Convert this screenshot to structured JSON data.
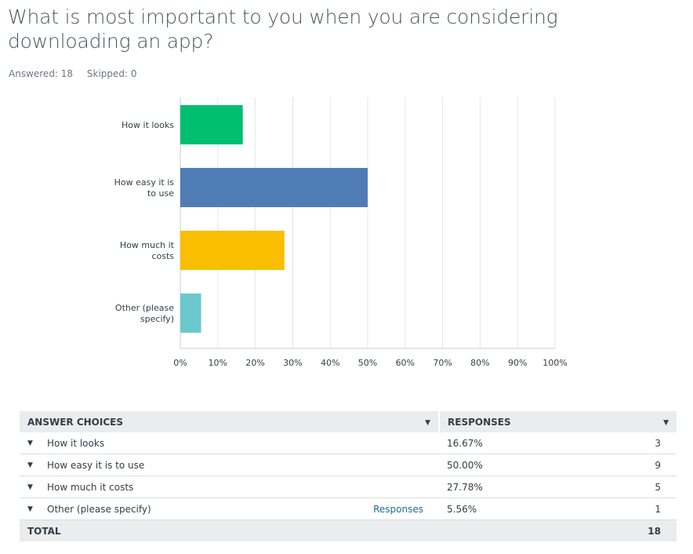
{
  "question": {
    "title": "What is most important to you when you are considering downloading an app?",
    "answered": "Answered: 18",
    "skipped": "Skipped: 0"
  },
  "colors": {
    "how_it_looks": "#00bf6f",
    "how_easy": "#507cb6",
    "how_much": "#f9be00",
    "other": "#6bc8cd",
    "grid": "#e4e6e8",
    "axis": "#c8ccd0"
  },
  "chart_data": {
    "type": "bar",
    "orientation": "horizontal",
    "categories": [
      [
        "How it looks"
      ],
      [
        "How easy it is",
        "to use"
      ],
      [
        "How much it",
        "costs"
      ],
      [
        "Other (please",
        "specify)"
      ]
    ],
    "values": [
      16.67,
      50.0,
      27.78,
      5.56
    ],
    "colors": [
      "#00bf6f",
      "#507cb6",
      "#f9be00",
      "#6bc8cd"
    ],
    "xlim": [
      0,
      100
    ],
    "xticks": [
      "0%",
      "10%",
      "20%",
      "30%",
      "40%",
      "50%",
      "60%",
      "70%",
      "80%",
      "90%",
      "100%"
    ],
    "grid": true
  },
  "table": {
    "headers": {
      "choices": "ANSWER CHOICES",
      "responses": "RESPONSES"
    },
    "rows": [
      {
        "choice": "How it looks",
        "percent": "16.67%",
        "count": "3",
        "link": ""
      },
      {
        "choice": "How easy it is to use",
        "percent": "50.00%",
        "count": "9",
        "link": ""
      },
      {
        "choice": "How much it costs",
        "percent": "27.78%",
        "count": "5",
        "link": ""
      },
      {
        "choice": "Other (please specify)",
        "percent": "5.56%",
        "count": "1",
        "link": "Responses"
      }
    ],
    "total": {
      "label": "TOTAL",
      "count": "18"
    }
  }
}
